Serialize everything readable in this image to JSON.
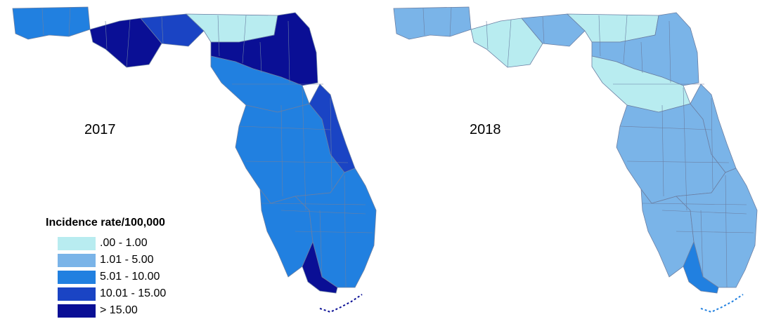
{
  "panels": [
    {
      "year": "2017"
    },
    {
      "year": "2018"
    }
  ],
  "legend": {
    "title": "Incidence rate/100,000",
    "classes": [
      {
        "label": ".00 - 1.00",
        "color": "#b8ecf0"
      },
      {
        "label": "1.01 - 5.00",
        "color": "#7ab4e8"
      },
      {
        "label": "5.01 - 10.00",
        "color": "#2180e0"
      },
      {
        "label": "10.01 - 15.00",
        "color": "#1a44c4"
      },
      {
        "label": "> 15.00",
        "color": "#0a0f95"
      }
    ]
  },
  "region_classes": {
    "2017": {
      "west_panhandle": 2,
      "mid_panhandle": 4,
      "east_panhandle": 3,
      "big_bend": 0,
      "northeast": 4,
      "north_central": 2,
      "central": 2,
      "central_east": 3,
      "southwest": 2,
      "southeast": 2,
      "south_tip": 4
    },
    "2018": {
      "west_panhandle": 1,
      "mid_panhandle": 0,
      "east_panhandle": 1,
      "big_bend": 0,
      "northeast": 1,
      "north_central": 0,
      "central": 1,
      "central_east": 1,
      "southwest": 1,
      "southeast": 1,
      "south_tip": 2
    }
  }
}
